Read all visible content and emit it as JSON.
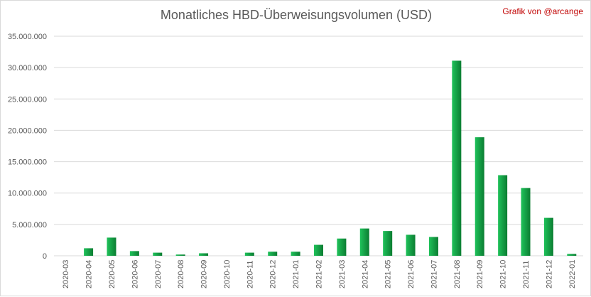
{
  "header": {
    "title": "Monatliches HBD-Überweisungsvolumen (USD)",
    "credit": "Grafik von @arcange"
  },
  "colors": {
    "bar_light": "#1fc25a",
    "bar_dark": "#0b7d32",
    "grid": "#d9d9d9",
    "text": "#595959",
    "credit": "#c00000"
  },
  "chart_data": {
    "type": "bar",
    "title": "Monatliches HBD-Überweisungsvolumen (USD)",
    "xlabel": "",
    "ylabel": "",
    "ylim": [
      0,
      35000000
    ],
    "grid": true,
    "legend": "none",
    "yticks": [
      "0",
      "5.000.000",
      "10.000.000",
      "15.000.000",
      "20.000.000",
      "25.000.000",
      "30.000.000",
      "35.000.000"
    ],
    "categories": [
      "2020-03",
      "2020-04",
      "2020-05",
      "2020-06",
      "2020-07",
      "2020-08",
      "2020-09",
      "2020-10",
      "2020-11",
      "2020-12",
      "2021-01",
      "2021-02",
      "2021-03",
      "2021-04",
      "2021-05",
      "2021-06",
      "2021-07",
      "2021-08",
      "2021-09",
      "2021-10",
      "2021-11",
      "2021-12",
      "2022-01"
    ],
    "values": [
      0,
      1200000,
      2900000,
      750000,
      500000,
      200000,
      400000,
      0,
      500000,
      650000,
      650000,
      1750000,
      2750000,
      4350000,
      3950000,
      3350000,
      3000000,
      31100000,
      18900000,
      12850000,
      10800000,
      6050000,
      300000
    ]
  }
}
